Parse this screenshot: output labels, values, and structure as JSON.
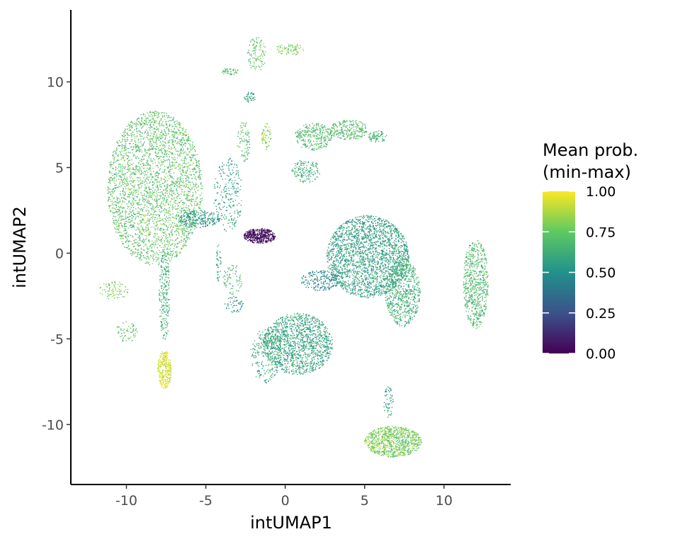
{
  "chart_data": {
    "type": "scatter",
    "title": "",
    "xlabel": "intUMAP1",
    "ylabel": "intUMAP2",
    "xlim": [
      -13.5,
      14.2
    ],
    "ylim": [
      -13.5,
      14.2
    ],
    "x_ticks": [
      -10,
      -5,
      0,
      5,
      10
    ],
    "x_tick_labels": [
      "-10",
      "-5",
      "0",
      "5",
      "10"
    ],
    "y_ticks": [
      -10,
      -5,
      0,
      5,
      10
    ],
    "y_tick_labels": [
      "-10",
      "-5",
      "0",
      "5",
      "10"
    ],
    "grid": false,
    "color_scale": {
      "name": "viridis",
      "colors": [
        "#440154",
        "#3b528b",
        "#21918c",
        "#5ec962",
        "#fde725"
      ],
      "title_lines": [
        "Mean prob.",
        "(min-max)"
      ],
      "breaks": [
        0.0,
        0.25,
        0.5,
        0.75,
        1.0
      ],
      "break_labels": [
        "0.00",
        "0.25",
        "0.50",
        "0.75",
        "1.00"
      ],
      "legend_position": "right"
    },
    "clusters": [
      {
        "cx": -8.2,
        "cy": 3.8,
        "rx": 3.0,
        "ry": 4.5,
        "value": 0.72,
        "n": 3000
      },
      {
        "cx": -5.5,
        "cy": 2.0,
        "rx": 1.4,
        "ry": 0.5,
        "value": 0.52,
        "n": 250
      },
      {
        "cx": -3.6,
        "cy": 3.4,
        "rx": 0.9,
        "ry": 2.2,
        "value": 0.55,
        "n": 230
      },
      {
        "cx": -2.6,
        "cy": 6.5,
        "rx": 0.4,
        "ry": 1.2,
        "value": 0.68,
        "n": 80
      },
      {
        "cx": -1.2,
        "cy": 6.8,
        "rx": 0.3,
        "ry": 0.8,
        "value": 0.8,
        "n": 60
      },
      {
        "cx": -1.6,
        "cy": 1.0,
        "rx": 1.0,
        "ry": 0.45,
        "value": 0.03,
        "n": 450
      },
      {
        "cx": -7.6,
        "cy": -2.5,
        "rx": 0.35,
        "ry": 2.6,
        "value": 0.62,
        "n": 230
      },
      {
        "cx": -7.6,
        "cy": -6.8,
        "rx": 0.45,
        "ry": 1.1,
        "value": 0.95,
        "n": 320
      },
      {
        "cx": -10.8,
        "cy": -2.2,
        "rx": 0.9,
        "ry": 0.6,
        "value": 0.78,
        "n": 80
      },
      {
        "cx": -10.0,
        "cy": -4.6,
        "rx": 0.7,
        "ry": 0.6,
        "value": 0.72,
        "n": 60
      },
      {
        "cx": -3.3,
        "cy": -1.5,
        "rx": 0.6,
        "ry": 0.9,
        "value": 0.62,
        "n": 70
      },
      {
        "cx": -3.2,
        "cy": -3.0,
        "rx": 0.6,
        "ry": 0.5,
        "value": 0.48,
        "n": 50
      },
      {
        "cx": 1.8,
        "cy": 6.8,
        "rx": 1.2,
        "ry": 0.8,
        "value": 0.68,
        "n": 300
      },
      {
        "cx": 4.0,
        "cy": 7.2,
        "rx": 1.2,
        "ry": 0.6,
        "value": 0.7,
        "n": 250
      },
      {
        "cx": 5.8,
        "cy": 6.8,
        "rx": 0.6,
        "ry": 0.35,
        "value": 0.66,
        "n": 80
      },
      {
        "cx": 1.3,
        "cy": 4.8,
        "rx": 0.9,
        "ry": 0.7,
        "value": 0.62,
        "n": 150
      },
      {
        "cx": 5.2,
        "cy": -0.2,
        "rx": 2.6,
        "ry": 2.4,
        "value": 0.56,
        "n": 2200
      },
      {
        "cx": 7.4,
        "cy": -2.3,
        "rx": 1.1,
        "ry": 2.0,
        "value": 0.62,
        "n": 700
      },
      {
        "cx": 2.2,
        "cy": -1.6,
        "rx": 1.2,
        "ry": 0.6,
        "value": 0.45,
        "n": 200
      },
      {
        "cx": 0.8,
        "cy": -5.3,
        "rx": 2.2,
        "ry": 1.8,
        "value": 0.58,
        "n": 1400
      },
      {
        "cx": -1.2,
        "cy": -6.0,
        "rx": 1.0,
        "ry": 1.6,
        "value": 0.6,
        "n": 250
      },
      {
        "cx": 12.0,
        "cy": -1.8,
        "rx": 0.8,
        "ry": 2.6,
        "value": 0.68,
        "n": 650
      },
      {
        "cx": 6.8,
        "cy": -11.0,
        "rx": 1.8,
        "ry": 0.9,
        "value": 0.78,
        "n": 900
      },
      {
        "cx": 6.5,
        "cy": -8.7,
        "rx": 0.3,
        "ry": 0.9,
        "value": 0.56,
        "n": 60
      },
      {
        "cx": -1.8,
        "cy": 11.6,
        "rx": 0.6,
        "ry": 1.0,
        "value": 0.74,
        "n": 110
      },
      {
        "cx": 0.3,
        "cy": 11.9,
        "rx": 0.9,
        "ry": 0.35,
        "value": 0.8,
        "n": 80
      },
      {
        "cx": -3.5,
        "cy": 10.6,
        "rx": 0.6,
        "ry": 0.2,
        "value": 0.72,
        "n": 50
      },
      {
        "cx": -2.2,
        "cy": 9.1,
        "rx": 0.4,
        "ry": 0.3,
        "value": 0.55,
        "n": 40
      },
      {
        "cx": -4.2,
        "cy": -0.6,
        "rx": 0.15,
        "ry": 1.1,
        "value": 0.58,
        "n": 40
      }
    ]
  }
}
